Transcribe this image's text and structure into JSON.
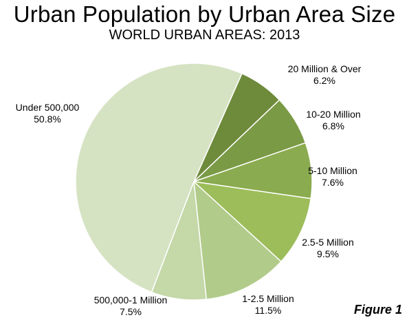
{
  "chart_data": {
    "type": "pie",
    "title": "Urban Population by Urban Area Size",
    "subtitle": "WORLD URBAN AREAS: 2013",
    "slices": [
      {
        "label": "20 Million & Over",
        "value": 6.2,
        "display": "6.2%",
        "color": "#6e8a3b"
      },
      {
        "label": "10-20 Million",
        "value": 6.8,
        "display": "6.8%",
        "color": "#7a9a45"
      },
      {
        "label": "5-10 Million",
        "value": 7.6,
        "display": "7.6%",
        "color": "#8aab4f"
      },
      {
        "label": "2.5-5 Million",
        "value": 9.5,
        "display": "9.5%",
        "color": "#9cbd5a"
      },
      {
        "label": "1-2.5 Million",
        "value": 11.5,
        "display": "11.5%",
        "color": "#b1cb8a"
      },
      {
        "label": "500,000-1 Million",
        "value": 7.5,
        "display": "7.5%",
        "color": "#c4d8a8"
      },
      {
        "label": "Under 500,000",
        "value": 50.8,
        "display": "50.8%",
        "color": "#d6e3c3"
      }
    ],
    "start_angle_deg": 24,
    "direction": "clockwise",
    "legend": "none"
  },
  "figure_label": "Figure 1"
}
